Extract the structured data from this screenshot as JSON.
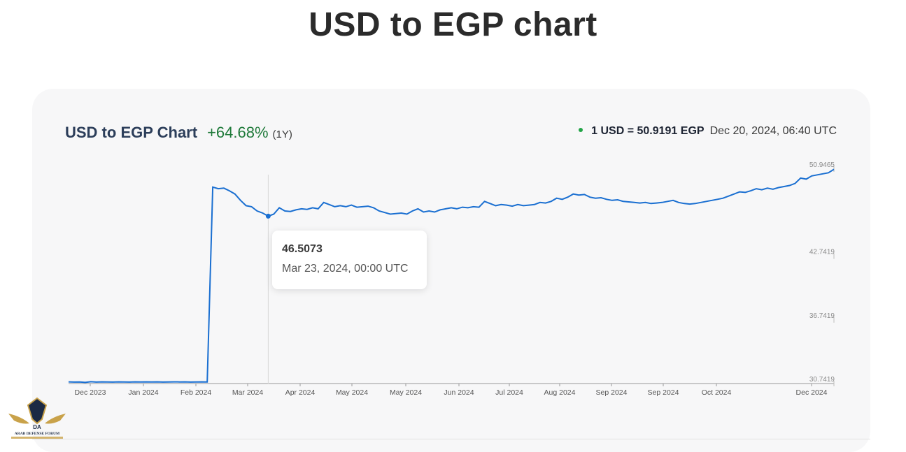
{
  "page": {
    "title": "USD to EGP chart"
  },
  "header": {
    "chart_title": "USD to EGP Chart",
    "change": "+64.68%",
    "period": "(1Y)",
    "rate": "1 USD = 50.9191 EGP",
    "rate_time": "Dec 20, 2024, 06:40 UTC"
  },
  "tooltip": {
    "value": "46.5073",
    "date": "Mar 23, 2024, 00:00 UTC"
  },
  "watermark": {
    "line1": "DA",
    "line2": "ARAB DEFENSE FORUM"
  },
  "colors": {
    "line": "#1a6fd1",
    "grid": "#e6e6e6",
    "up": "#1f7a3a",
    "dot": "#22a447"
  },
  "chart_data": {
    "type": "line",
    "series": [
      {
        "values": [
          30.9,
          30.88,
          30.89,
          30.85,
          30.91,
          30.88,
          30.9,
          30.89,
          30.88,
          30.9,
          30.89,
          30.88,
          30.9,
          30.89,
          30.9,
          30.89,
          30.9,
          30.88,
          30.89,
          30.9,
          30.89,
          30.9,
          30.88,
          30.89,
          30.9,
          30.89,
          49.25,
          49.1,
          49.15,
          48.9,
          48.6,
          48.0,
          47.5,
          47.4,
          47.0,
          46.8,
          46.51,
          46.7,
          47.3,
          47.0,
          46.95,
          47.1,
          47.2,
          47.15,
          47.3,
          47.2,
          47.8,
          47.6,
          47.4,
          47.5,
          47.4,
          47.55,
          47.35,
          47.4,
          47.45,
          47.3,
          47.0,
          46.85,
          46.7,
          46.75,
          46.8,
          46.7,
          47.0,
          47.2,
          46.9,
          47.0,
          46.9,
          47.1,
          47.2,
          47.3,
          47.2,
          47.35,
          47.3,
          47.4,
          47.35,
          47.9,
          47.7,
          47.5,
          47.6,
          47.55,
          47.45,
          47.6,
          47.5,
          47.55,
          47.6,
          47.8,
          47.75,
          47.9,
          48.2,
          48.1,
          48.3,
          48.6,
          48.5,
          48.55,
          48.3,
          48.2,
          48.25,
          48.1,
          48.0,
          48.05,
          47.9,
          47.85,
          47.8,
          47.75,
          47.8,
          47.7,
          47.75,
          47.8,
          47.9,
          48.0,
          47.8,
          47.7,
          47.65,
          47.7,
          47.8,
          47.9,
          48.0,
          48.1,
          48.2,
          48.4,
          48.6,
          48.8,
          48.75,
          48.9,
          49.1,
          49.0,
          49.15,
          49.05,
          49.2,
          49.3,
          49.4,
          49.6,
          50.1,
          50.0,
          50.3,
          50.4,
          50.5,
          50.6,
          50.92
        ]
      }
    ],
    "xlabels": [
      "Dec 2023",
      "Jan 2024",
      "Feb 2024",
      "Mar 2024",
      "Apr 2024",
      "May 2024",
      "May 2024",
      "Jun 2024",
      "Jul 2024",
      "Aug 2024",
      "Sep 2024",
      "Sep 2024",
      "Oct 2024",
      "Dec 2024"
    ],
    "yticks": [
      "50.9465",
      "42.7419",
      "36.7419",
      "30.7419"
    ],
    "ylim": [
      30.7419,
      50.9465
    ]
  }
}
